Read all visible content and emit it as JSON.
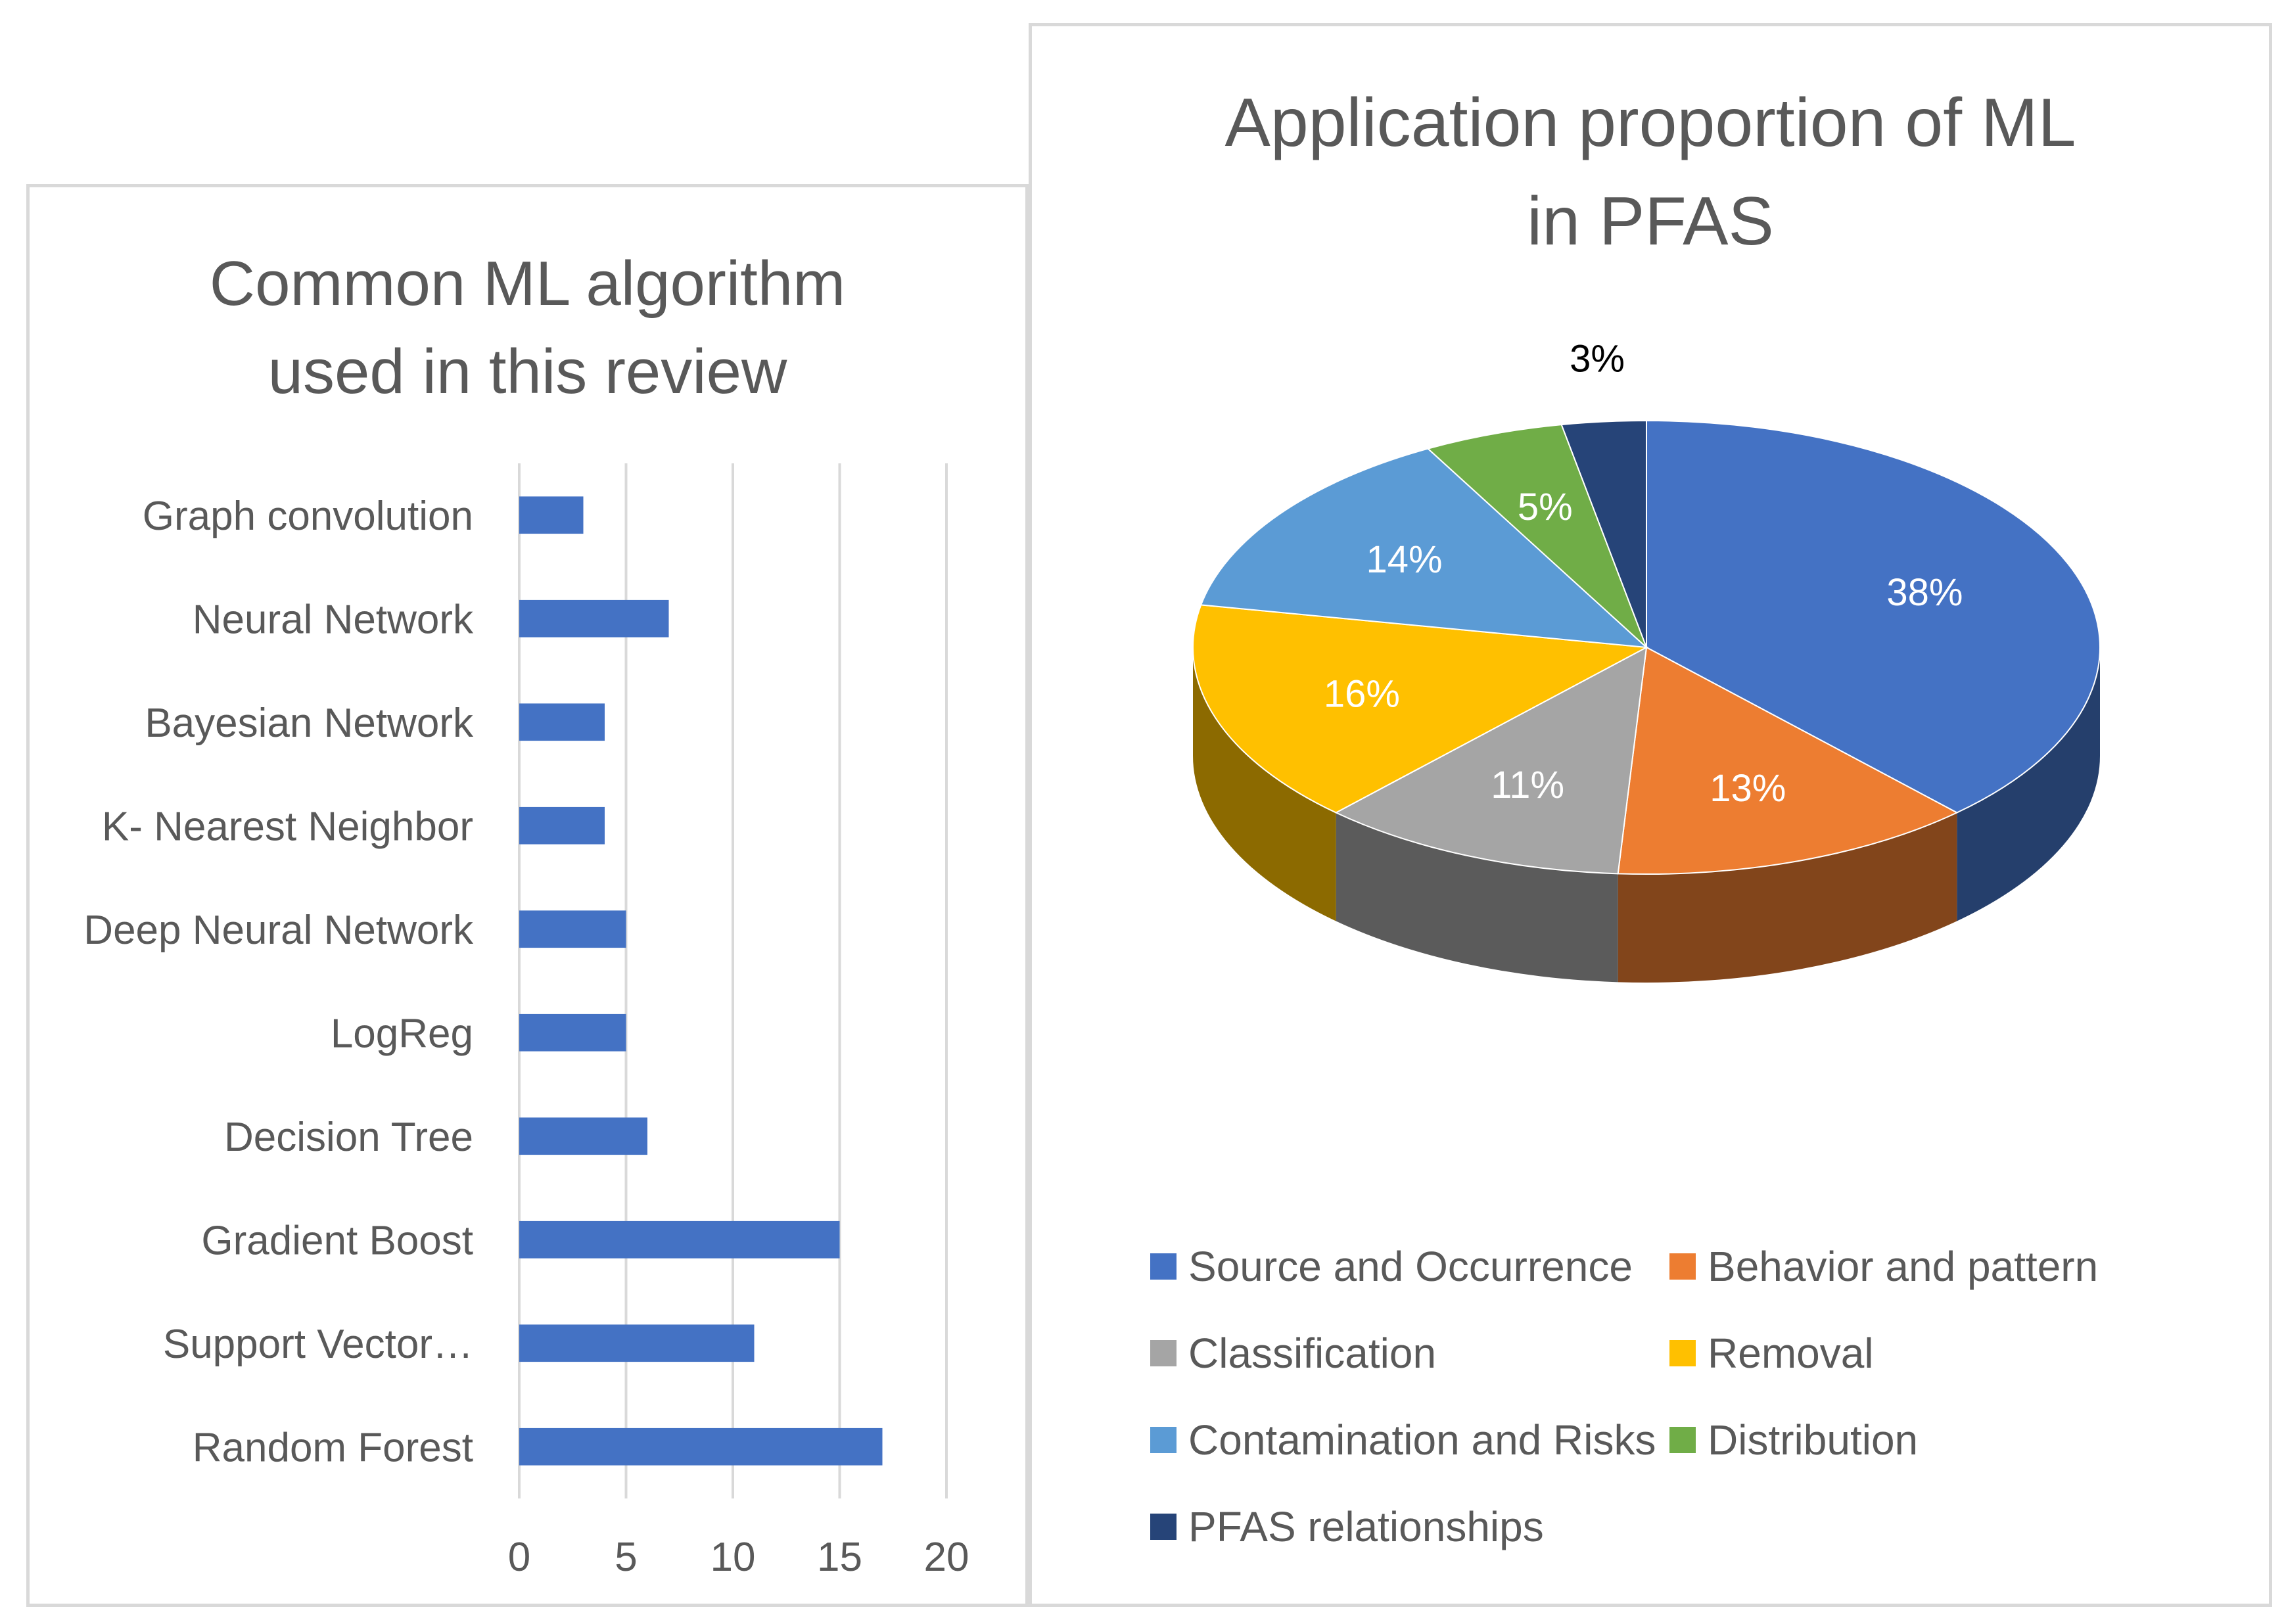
{
  "chart_data": [
    {
      "type": "bar",
      "orientation": "horizontal",
      "title": "Common ML algorithm used in this review",
      "categories": [
        "Graph convolution",
        "Neural Network",
        "Bayesian Network",
        "K- Nearest Neighbor",
        "Deep Neural Network",
        "LogReg",
        "Decision Tree",
        "Gradient Boost",
        "Support Vector…",
        "Random Forest"
      ],
      "values": [
        3,
        7,
        4,
        4,
        5,
        5,
        6,
        15,
        11,
        17
      ],
      "xlim": [
        0,
        20
      ],
      "xticks": [
        "0",
        "5",
        "10",
        "15",
        "20"
      ],
      "grid": "vertical",
      "color": "#4472c4",
      "legend": "none"
    },
    {
      "type": "pie",
      "title": "Application proportion of ML in PFAS",
      "style": "3d",
      "slices": [
        {
          "name": "Source and Occurrence",
          "value": 38,
          "label": "38%",
          "color": "#4472c4"
        },
        {
          "name": "Behavior and pattern",
          "value": 13,
          "label": "13%",
          "color": "#ed7d31"
        },
        {
          "name": "Classification",
          "value": 11,
          "label": "11%",
          "color": "#a5a5a5"
        },
        {
          "name": "Removal",
          "value": 16,
          "label": "16%",
          "color": "#ffc000"
        },
        {
          "name": "Contamination and Risks",
          "value": 14,
          "label": "14%",
          "color": "#5b9bd5"
        },
        {
          "name": "Distribution",
          "value": 5,
          "label": "5%",
          "color": "#70ad47"
        },
        {
          "name": "PFAS relationships",
          "value": 3,
          "label": "3%",
          "color": "#264478"
        }
      ],
      "legend": "bottom"
    }
  ]
}
